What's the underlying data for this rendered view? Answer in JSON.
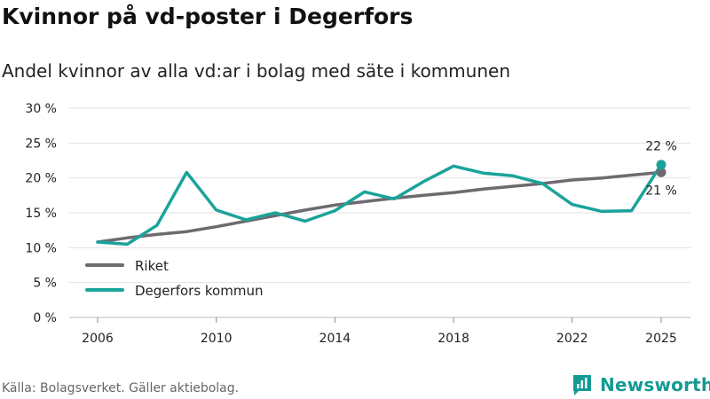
{
  "header": {
    "title": "Kvinnor på vd-poster i Degerfors",
    "subtitle": "Andel kvinnor av alla vd:ar i bolag med säte i kommunen"
  },
  "footer": {
    "source": "Källa: Bolagsverket. Gäller aktiebolag.",
    "brand": "Newsworthy",
    "brand_color": "#139b93"
  },
  "chart_data": {
    "type": "line",
    "title": "Kvinnor på vd-poster i Degerfors",
    "subtitle": "Andel kvinnor av alla vd:ar i bolag med säte i kommunen",
    "xlabel": "",
    "ylabel": "",
    "ylim": [
      0,
      30
    ],
    "xlim": [
      2005,
      2026
    ],
    "grid": true,
    "legend_position": "bottom-left",
    "y_ticks": [
      0,
      5,
      10,
      15,
      20,
      25,
      30
    ],
    "y_tick_labels": [
      "0 %",
      "5 %",
      "10 %",
      "15 %",
      "20 %",
      "25 %",
      "30 %"
    ],
    "x_ticks": [
      2006,
      2010,
      2014,
      2018,
      2022,
      2025
    ],
    "x_tick_labels": [
      "2006",
      "2010",
      "2014",
      "2018",
      "2022",
      "2025"
    ],
    "x": [
      2006,
      2007,
      2008,
      2009,
      2010,
      2011,
      2012,
      2013,
      2014,
      2015,
      2016,
      2017,
      2018,
      2019,
      2020,
      2021,
      2022,
      2023,
      2024,
      2025
    ],
    "series": [
      {
        "name": "Riket",
        "color": "#6e6a70",
        "values": [
          10.8,
          11.4,
          11.9,
          12.3,
          13.0,
          13.8,
          14.6,
          15.4,
          16.1,
          16.6,
          17.1,
          17.5,
          17.9,
          18.4,
          18.8,
          19.2,
          19.7,
          20.0,
          20.4,
          20.8
        ],
        "end_label": "21 %"
      },
      {
        "name": "Degerfors kommun",
        "color": "#1aa39a",
        "values": [
          10.8,
          10.5,
          13.2,
          20.8,
          15.4,
          14.0,
          15.0,
          13.8,
          15.3,
          18.0,
          17.0,
          19.5,
          21.7,
          20.7,
          20.3,
          19.2,
          16.2,
          15.2,
          15.3,
          21.9
        ],
        "end_label": "22 %"
      }
    ]
  }
}
